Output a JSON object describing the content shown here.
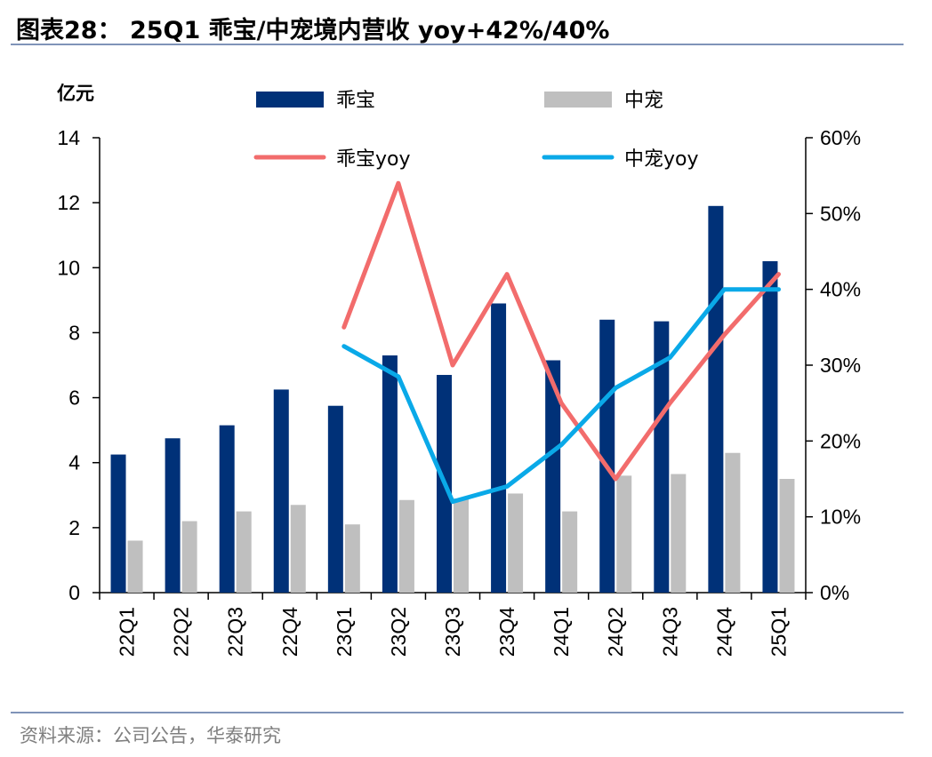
{
  "title": "图表28：  25Q1 乖宝/中宠境内营收 yoy+42%/40%",
  "source": "资料来源：公司公告，华泰研究",
  "colors": {
    "guaibao_bar": "#003178",
    "zhongchong_bar": "#bfbfbf",
    "guaibao_line": "#f26c6c",
    "zhongchong_line": "#0aa9e8",
    "rule": "#7f94b8"
  },
  "chart_data": {
    "type": "bar",
    "ylabel": "亿元",
    "categories": [
      "22Q1",
      "22Q2",
      "22Q3",
      "22Q4",
      "23Q1",
      "23Q2",
      "23Q3",
      "23Q4",
      "24Q1",
      "24Q2",
      "24Q3",
      "24Q4",
      "25Q1"
    ],
    "ylim": [
      0,
      14
    ],
    "yticks": [
      "0",
      "2",
      "4",
      "6",
      "8",
      "10",
      "12",
      "14"
    ],
    "y2lim": [
      0,
      0.6
    ],
    "y2ticks": [
      "0%",
      "10%",
      "20%",
      "30%",
      "40%",
      "50%",
      "60%"
    ],
    "legend_position": "top",
    "series": [
      {
        "name": "乖宝",
        "type": "bar",
        "axis": "left",
        "values": [
          4.25,
          4.75,
          5.15,
          6.25,
          5.75,
          7.3,
          6.7,
          8.9,
          7.15,
          8.4,
          8.35,
          11.9,
          10.2
        ]
      },
      {
        "name": "中宠",
        "type": "bar",
        "axis": "left",
        "values": [
          1.6,
          2.2,
          2.5,
          2.7,
          2.1,
          2.85,
          2.9,
          3.05,
          2.5,
          3.6,
          3.65,
          4.3,
          3.5
        ]
      },
      {
        "name": "乖宝yoy",
        "type": "line",
        "axis": "right",
        "values": [
          null,
          null,
          null,
          null,
          0.35,
          0.54,
          0.3,
          0.42,
          0.25,
          0.15,
          0.25,
          0.34,
          0.42
        ]
      },
      {
        "name": "中宠yoy",
        "type": "line",
        "axis": "right",
        "values": [
          null,
          null,
          null,
          null,
          0.325,
          0.285,
          0.12,
          0.14,
          0.195,
          0.27,
          0.31,
          0.4,
          0.4
        ]
      }
    ]
  }
}
